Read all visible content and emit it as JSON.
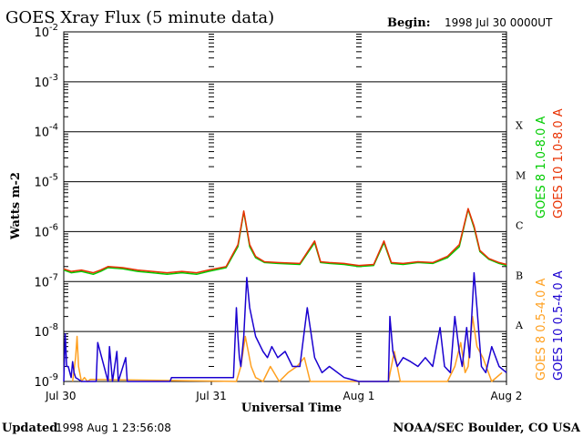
{
  "chart_data": {
    "type": "line",
    "title": "GOES Xray Flux (5 minute data)",
    "begin_label": "Begin:",
    "begin_value": "1998 Jul 30 0000UT",
    "ylabel": "Watts m-2",
    "xlabel": "Universal Time",
    "y_scale": "log",
    "ylim": [
      1e-09,
      0.01
    ],
    "y_ticks": [
      {
        "exp": "-2",
        "value": 0.01
      },
      {
        "exp": "-3",
        "value": 0.001
      },
      {
        "exp": "-4",
        "value": 0.0001
      },
      {
        "exp": "-5",
        "value": 1e-05
      },
      {
        "exp": "-6",
        "value": 1e-06
      },
      {
        "exp": "-7",
        "value": 1e-07
      },
      {
        "exp": "-8",
        "value": 1e-08
      },
      {
        "exp": "-9",
        "value": 1e-09
      }
    ],
    "x_range_days": [
      0,
      3
    ],
    "x_ticks": [
      {
        "label": "Jul 30",
        "day": 0
      },
      {
        "label": "Jul 31",
        "day": 1
      },
      {
        "label": "Aug 1",
        "day": 2
      },
      {
        "label": "Aug 2",
        "day": 3
      }
    ],
    "flare_classes": [
      {
        "label": "X",
        "value": 0.0001
      },
      {
        "label": "M",
        "value": 1e-05
      },
      {
        "label": "C",
        "value": 1e-06
      },
      {
        "label": "B",
        "value": 1e-07
      },
      {
        "label": "A",
        "value": 1e-08
      }
    ],
    "legend": {
      "long": [
        {
          "label": "GOES 8 1.0-8.0 A",
          "color": "#00cc00"
        },
        {
          "label": "GOES 10 1.0-8.0 A",
          "color": "#e83000"
        }
      ],
      "short": [
        {
          "label": "GOES 8 0.5-4.0 A",
          "color": "#ffa020"
        },
        {
          "label": "GOES 10 0.5-4.0 A",
          "color": "#1a00d0"
        }
      ]
    },
    "series": [
      {
        "name": "GOES 8 1.0-8.0 A",
        "color": "#00cc00",
        "x": [
          0,
          0.05,
          0.12,
          0.2,
          0.25,
          0.3,
          0.4,
          0.5,
          0.6,
          0.7,
          0.8,
          0.9,
          0.98,
          1.1,
          1.18,
          1.22,
          1.26,
          1.3,
          1.36,
          1.45,
          1.6,
          1.7,
          1.74,
          1.8,
          1.9,
          2.0,
          2.1,
          2.17,
          2.22,
          2.3,
          2.4,
          2.5,
          2.6,
          2.68,
          2.74,
          2.78,
          2.82,
          2.88,
          2.95,
          3.0
        ],
        "y": [
          1.7e-07,
          1.5e-07,
          1.6e-07,
          1.4e-07,
          1.6e-07,
          1.9e-07,
          1.8e-07,
          1.6e-07,
          1.5e-07,
          1.4e-07,
          1.5e-07,
          1.4e-07,
          1.6e-07,
          1.9e-07,
          5e-07,
          2.5e-06,
          5e-07,
          3e-07,
          2.4e-07,
          2.3e-07,
          2.2e-07,
          6e-07,
          2.4e-07,
          2.3e-07,
          2.2e-07,
          2e-07,
          2.1e-07,
          6e-07,
          2.3e-07,
          2.2e-07,
          2.4e-07,
          2.3e-07,
          3e-07,
          5e-07,
          2.8e-06,
          1.2e-06,
          4e-07,
          2.8e-07,
          2.3e-07,
          2.1e-07
        ]
      },
      {
        "name": "GOES 10 1.0-8.0 A",
        "color": "#e83000",
        "x": [
          0,
          0.05,
          0.12,
          0.2,
          0.25,
          0.3,
          0.4,
          0.5,
          0.6,
          0.7,
          0.8,
          0.9,
          0.98,
          1.1,
          1.18,
          1.22,
          1.26,
          1.3,
          1.36,
          1.45,
          1.6,
          1.7,
          1.74,
          1.8,
          1.9,
          2.0,
          2.1,
          2.17,
          2.22,
          2.3,
          2.4,
          2.5,
          2.6,
          2.68,
          2.74,
          2.78,
          2.82,
          2.88,
          2.95,
          3.0
        ],
        "y": [
          1.8e-07,
          1.6e-07,
          1.7e-07,
          1.5e-07,
          1.7e-07,
          2e-07,
          1.9e-07,
          1.7e-07,
          1.6e-07,
          1.5e-07,
          1.6e-07,
          1.5e-07,
          1.7e-07,
          2e-07,
          5.5e-07,
          2.6e-06,
          5.5e-07,
          3.2e-07,
          2.5e-07,
          2.4e-07,
          2.3e-07,
          6.5e-07,
          2.5e-07,
          2.4e-07,
          2.3e-07,
          2.1e-07,
          2.2e-07,
          6.5e-07,
          2.4e-07,
          2.3e-07,
          2.5e-07,
          2.4e-07,
          3.2e-07,
          5.5e-07,
          2.9e-06,
          1.3e-06,
          4.2e-07,
          2.9e-07,
          2.4e-07,
          2.2e-07
        ]
      },
      {
        "name": "GOES 8 0.5-4.0 A",
        "color": "#ffa020",
        "x": [
          0.06,
          0.08,
          0.09,
          0.1,
          0.12,
          0.14,
          0.16,
          0.18,
          1.17,
          1.2,
          1.23,
          1.27,
          1.3,
          1.35,
          1.4,
          1.46,
          1.52,
          1.58,
          1.63,
          1.67,
          2.2,
          2.24,
          2.28,
          2.5,
          2.6,
          2.65,
          2.69,
          2.72,
          2.74,
          2.77,
          2.8,
          2.84,
          2.9,
          2.97
        ],
        "y": [
          1e-09,
          3e-09,
          8e-09,
          2e-09,
          1e-09,
          1.2e-09,
          1e-09,
          1.1e-09,
          1e-09,
          2e-09,
          8e-09,
          2e-09,
          1.2e-09,
          1e-09,
          2e-09,
          1e-09,
          1.5e-09,
          2e-09,
          3e-09,
          1e-09,
          1e-09,
          4e-09,
          1e-09,
          1e-09,
          1e-09,
          2e-09,
          6e-09,
          1.5e-09,
          2e-09,
          2e-08,
          5e-09,
          3e-09,
          1e-09,
          1.5e-09
        ]
      },
      {
        "name": "GOES 10 0.5-4.0 A",
        "color": "#1a00d0",
        "x": [
          0,
          0.01,
          0.02,
          0.03,
          0.05,
          0.06,
          0.07,
          0.08,
          0.1,
          0.12,
          0.22,
          0.23,
          0.3,
          0.31,
          0.33,
          0.36,
          0.37,
          0.42,
          0.43,
          0.52,
          0.72,
          0.73,
          1.15,
          1.17,
          1.18,
          1.19,
          1.2,
          1.22,
          1.24,
          1.26,
          1.3,
          1.35,
          1.38,
          1.41,
          1.45,
          1.5,
          1.55,
          1.6,
          1.65,
          1.7,
          1.75,
          1.8,
          1.9,
          2.0,
          2.2,
          2.21,
          2.23,
          2.26,
          2.3,
          2.35,
          2.4,
          2.45,
          2.5,
          2.55,
          2.58,
          2.62,
          2.65,
          2.68,
          2.7,
          2.73,
          2.75,
          2.78,
          2.8,
          2.83,
          2.86,
          2.9,
          2.95,
          3.0
        ],
        "y": [
          1e-09,
          9e-09,
          2e-09,
          2e-09,
          1.2e-09,
          2.5e-09,
          1.5e-09,
          1.2e-09,
          1.1e-09,
          1e-09,
          1e-09,
          6e-09,
          1e-09,
          5e-09,
          1e-09,
          4e-09,
          1e-09,
          3e-09,
          1e-09,
          1e-09,
          1e-09,
          1.2e-09,
          1.2e-09,
          3e-08,
          8e-09,
          3e-09,
          2e-09,
          8e-09,
          1.2e-07,
          3e-08,
          8e-09,
          4e-09,
          3e-09,
          5e-09,
          3e-09,
          4e-09,
          2e-09,
          2e-09,
          3e-08,
          3e-09,
          1.5e-09,
          2e-09,
          1.2e-09,
          1e-09,
          1e-09,
          2e-08,
          4e-09,
          2e-09,
          3e-09,
          2.5e-09,
          2e-09,
          3e-09,
          2e-09,
          1.2e-08,
          2e-09,
          1.5e-09,
          2e-08,
          4e-09,
          2e-09,
          1.2e-08,
          3e-09,
          1.5e-07,
          3e-08,
          2e-09,
          1.5e-09,
          5e-09,
          2e-09,
          1.5e-09
        ]
      }
    ]
  },
  "footer": {
    "updated_label": "Updated",
    "updated_value": "1998 Aug  1 23:56:08",
    "credit": "NOAA/SEC Boulder, CO USA"
  }
}
